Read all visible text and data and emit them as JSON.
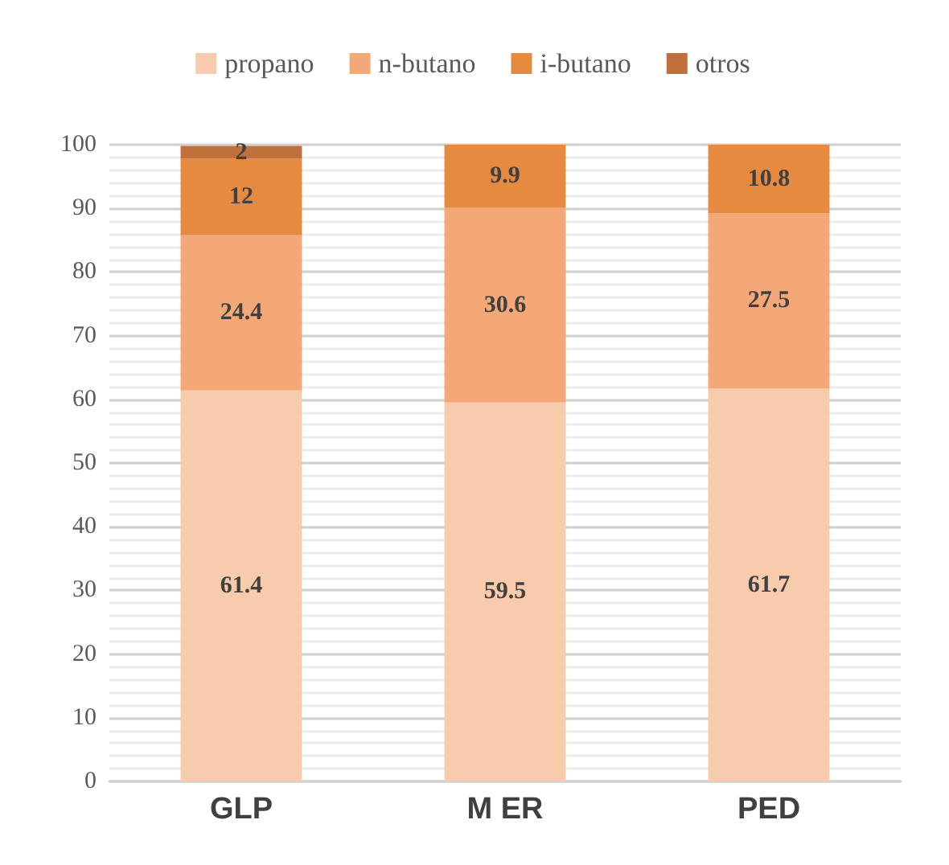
{
  "chart_data": {
    "type": "bar",
    "stacked": true,
    "categories": [
      "GLP",
      "M ER",
      "PED"
    ],
    "series": [
      {
        "name": "propano",
        "color": "#f8cbad",
        "values": [
          61.4,
          59.5,
          61.7
        ]
      },
      {
        "name": "n-butano",
        "color": "#f4a878",
        "values": [
          24.4,
          30.6,
          27.5
        ]
      },
      {
        "name": "i-butano",
        "color": "#e68a40",
        "values": [
          12,
          9.9,
          10.8
        ]
      },
      {
        "name": "otros",
        "color": "#c0703a",
        "values": [
          2,
          null,
          null
        ]
      }
    ],
    "ylim": [
      0,
      100
    ],
    "yticks": [
      0,
      {
        "value": 2,
        "label": null
      },
      {
        "value": 4,
        "label": null
      },
      {
        "value": 6,
        "label": null
      },
      {
        "value": 8,
        "label": null
      },
      10,
      {
        "value": 12,
        "label": null
      },
      {
        "value": 14,
        "label": null
      },
      {
        "value": 16,
        "label": null
      },
      {
        "value": 18,
        "label": null
      },
      20,
      {
        "value": 22,
        "label": null
      },
      {
        "value": 24,
        "label": null
      },
      {
        "value": 26,
        "label": null
      },
      {
        "value": 28,
        "label": null
      },
      30,
      {
        "value": 32,
        "label": null
      },
      {
        "value": 34,
        "label": null
      },
      {
        "value": 36,
        "label": null
      },
      {
        "value": 38,
        "label": null
      },
      40,
      {
        "value": 42,
        "label": null
      },
      {
        "value": 44,
        "label": null
      },
      {
        "value": 46,
        "label": null
      },
      {
        "value": 48,
        "label": null
      },
      50,
      {
        "value": 52,
        "label": null
      },
      {
        "value": 54,
        "label": null
      },
      {
        "value": 56,
        "label": null
      },
      {
        "value": 58,
        "label": null
      },
      60,
      {
        "value": 62,
        "label": null
      },
      {
        "value": 64,
        "label": null
      },
      {
        "value": 66,
        "label": null
      },
      {
        "value": 68,
        "label": null
      },
      70,
      {
        "value": 72,
        "label": null
      },
      {
        "value": 74,
        "label": null
      },
      {
        "value": 76,
        "label": null
      },
      {
        "value": 78,
        "label": null
      },
      80,
      {
        "value": 82,
        "label": null
      },
      {
        "value": 84,
        "label": null
      },
      {
        "value": 86,
        "label": null
      },
      {
        "value": 88,
        "label": null
      },
      90,
      {
        "value": 92,
        "label": null
      },
      {
        "value": 94,
        "label": null
      },
      {
        "value": 96,
        "label": null
      },
      {
        "value": 98,
        "label": null
      },
      100
    ],
    "grid": "y",
    "legend": "top",
    "data_labels": true
  }
}
